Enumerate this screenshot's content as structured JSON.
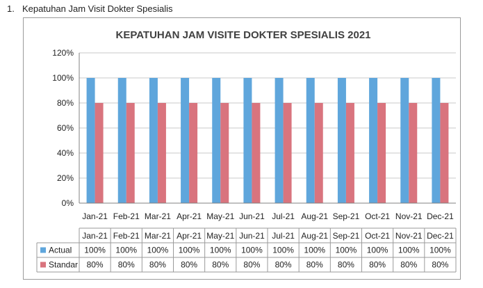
{
  "heading": {
    "number": "1.",
    "text": "Kepatuhan Jam Visit Dokter Spesialis"
  },
  "colors": {
    "actual": "#5fa6dc",
    "standar": "#d9747e",
    "grid": "#c8c8c8",
    "axis": "#808080"
  },
  "chart_data": {
    "type": "bar",
    "title": "KEPATUHAN JAM VISITE DOKTER SPESIALIS 2021",
    "xlabel": "",
    "ylabel": "",
    "categories": [
      "Jan-21",
      "Feb-21",
      "Mar-21",
      "Apr-21",
      "May-21",
      "Jun-21",
      "Jul-21",
      "Aug-21",
      "Sep-21",
      "Oct-21",
      "Nov-21",
      "Dec-21"
    ],
    "series": [
      {
        "name": "Actual",
        "values": [
          100,
          100,
          100,
          100,
          100,
          100,
          100,
          100,
          100,
          100,
          100,
          100
        ]
      },
      {
        "name": "Standar",
        "values": [
          80,
          80,
          80,
          80,
          80,
          80,
          80,
          80,
          80,
          80,
          80,
          80
        ]
      }
    ],
    "ylim": [
      0,
      120
    ],
    "yticks": [
      "0%",
      "20%",
      "40%",
      "60%",
      "80%",
      "100%",
      "120%"
    ],
    "grid": true,
    "legend": "data-table-below",
    "data_table": {
      "rows": [
        {
          "label": "Actual",
          "cells": [
            "100%",
            "100%",
            "100%",
            "100%",
            "100%",
            "100%",
            "100%",
            "100%",
            "100%",
            "100%",
            "100%",
            "100%"
          ]
        },
        {
          "label": "Standar",
          "cells": [
            "80%",
            "80%",
            "80%",
            "80%",
            "80%",
            "80%",
            "80%",
            "80%",
            "80%",
            "80%",
            "80%",
            "80%"
          ]
        }
      ]
    }
  }
}
